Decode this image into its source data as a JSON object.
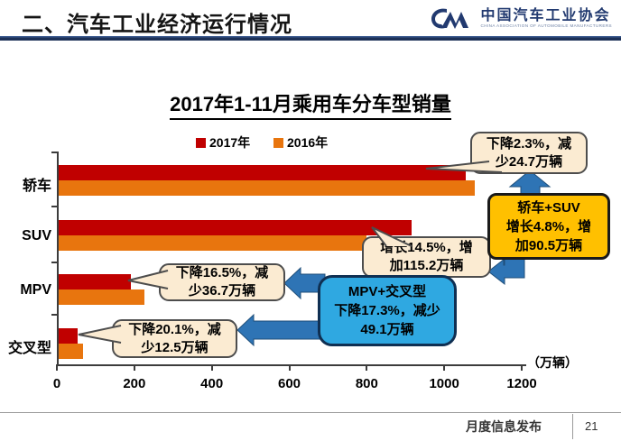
{
  "slide": {
    "header": {
      "title": "二、汽车工业经济运行情况"
    },
    "logo": {
      "mark": "CM",
      "name_cn": "中国汽车工业协会",
      "name_en": "CHINA ASSOCIATION OF AUTOMOBILE MANUFACTURERS"
    },
    "footer": {
      "label": "月度信息发布",
      "page": "21"
    }
  },
  "chart_data": {
    "type": "bar",
    "orientation": "horizontal",
    "title": "2017年1-11月乘用车分车型销量",
    "categories": [
      "轿车",
      "SUV",
      "MPV",
      "交叉型"
    ],
    "series": [
      {
        "name": "2017年",
        "color": "#c00000",
        "values": [
          1049.7,
          909.8,
          185.6,
          49.7
        ]
      },
      {
        "name": "2016年",
        "color": "#e8750e",
        "values": [
          1074.4,
          794.6,
          222.3,
          62.2
        ]
      }
    ],
    "xlim": [
      0,
      1200
    ],
    "x_tick_values": [
      0,
      200,
      400,
      600,
      800,
      1000,
      1200
    ],
    "x_ticks": [
      "0",
      "200",
      "400",
      "600",
      "800",
      "1000",
      "1200"
    ],
    "unit_label": "（万辆）",
    "legend_position": "top",
    "grid": false
  },
  "callouts": {
    "sedan": "下降2.3%，减\n少24.7万辆",
    "suv": "增长14.5%，增\n加115.2万辆",
    "mpv": "下降16.5%，减\n少36.7万辆",
    "crossover": "下降20.1%，减\n少12.5万辆",
    "sedan_suv": "轿车+SUV\n增长4.8%，增\n加90.5万辆",
    "mpv_crossover": "MPV+交叉型\n下降17.3%，减少\n49.1万辆"
  },
  "colors": {
    "bar_2017": "#c00000",
    "bar_2016": "#e8750e",
    "arrow_blue": "#2e74b5",
    "arrow_outline": "#1f4e79",
    "gold_box": "#ffc000",
    "blue_box": "#2fa8e1",
    "bubble_cream": "#fbebd2",
    "bubble_border": "#4d4d4d",
    "header_line": "#1d3157",
    "logo_navy": "#223a70"
  }
}
